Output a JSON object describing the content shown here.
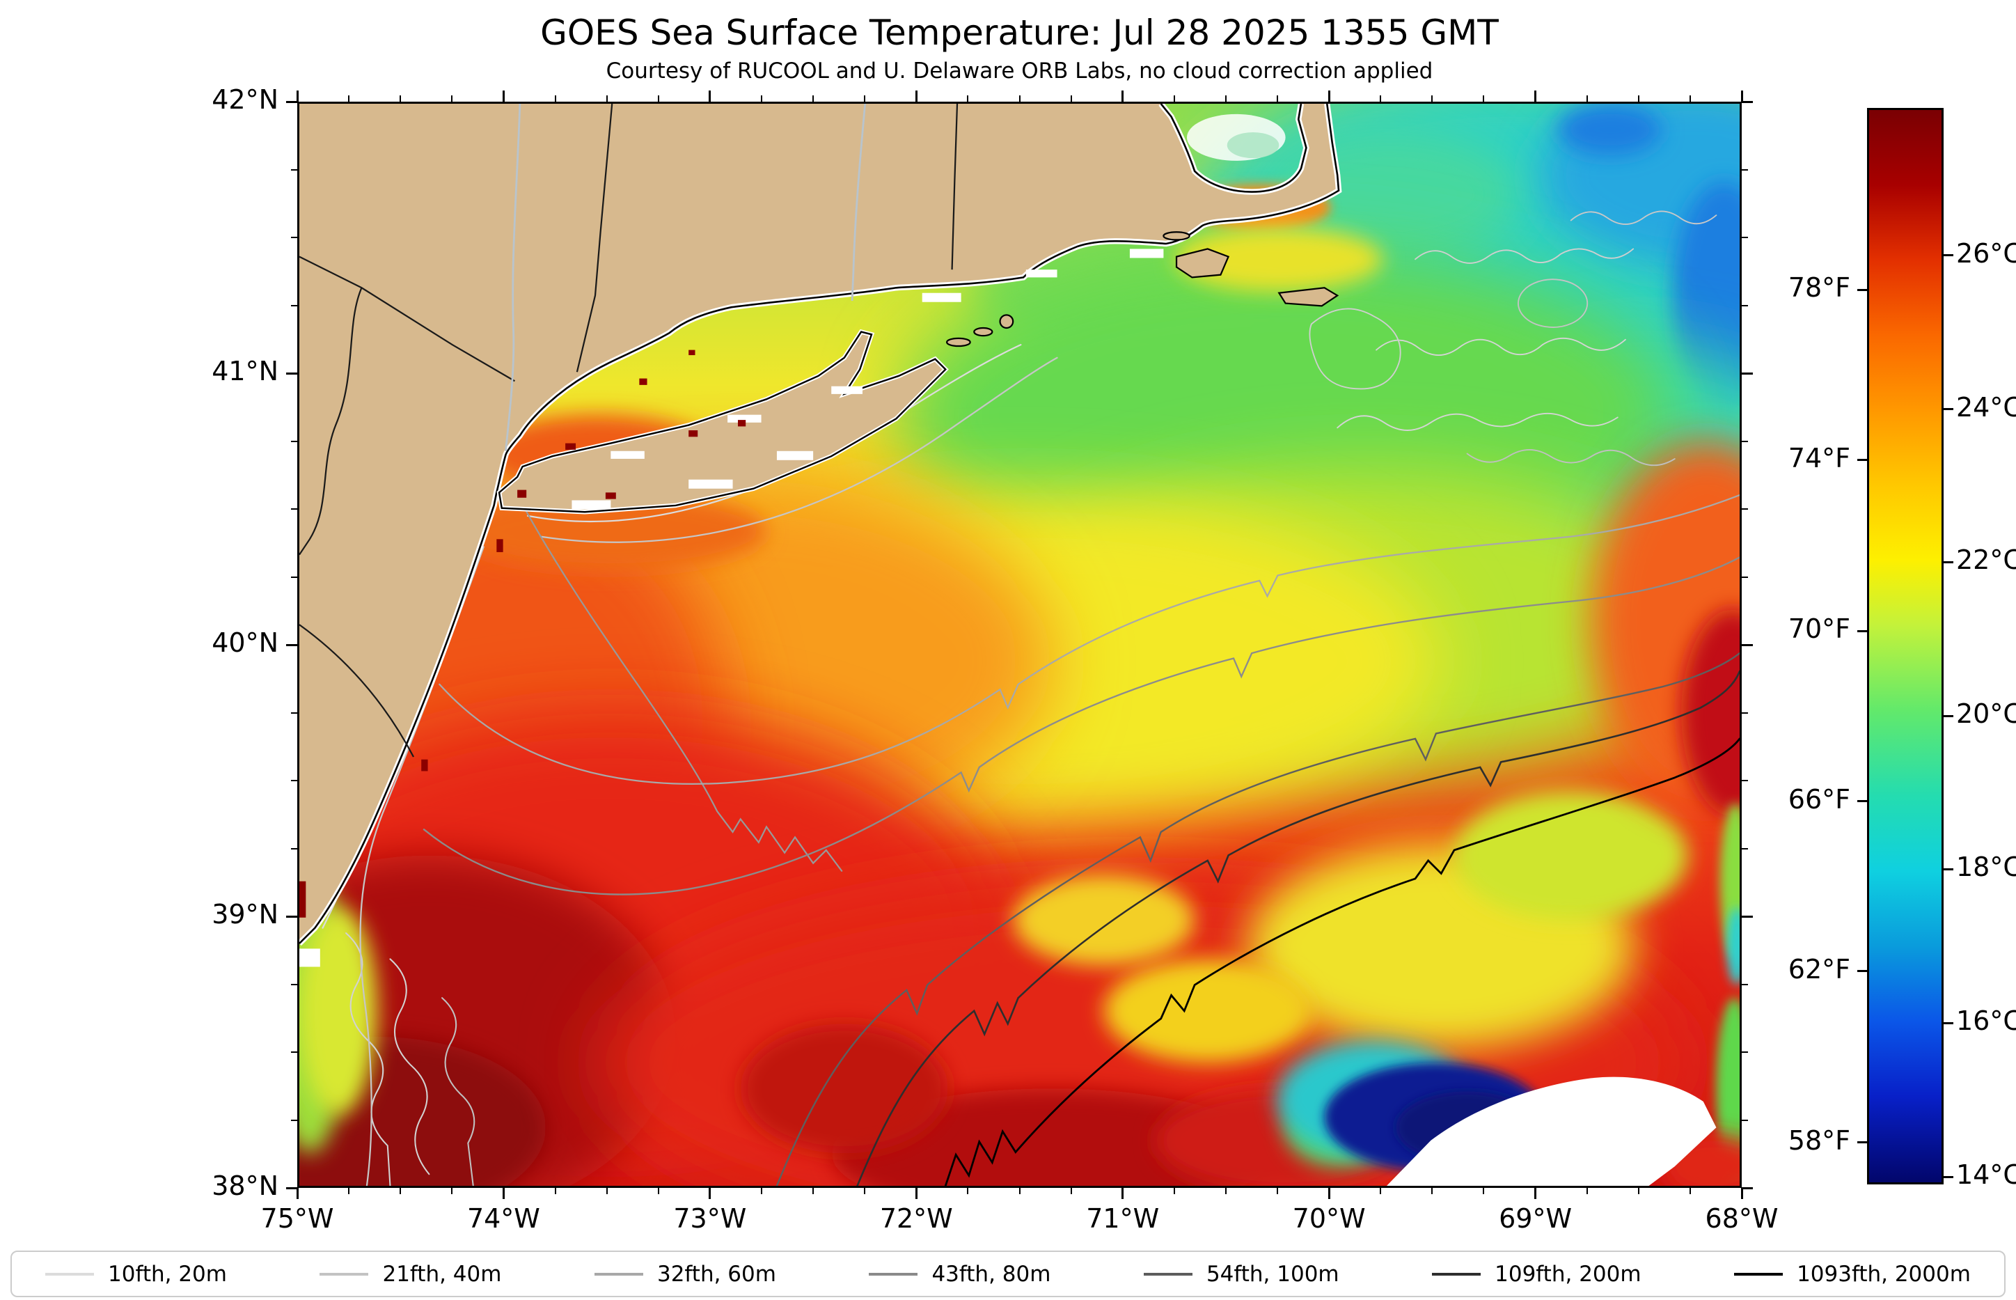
{
  "header": {
    "title": "GOES Sea Surface Temperature: Jul 28 2025 1355 GMT",
    "subtitle": "Courtesy of RUCOOL and U. Delaware ORB Labs, no cloud correction applied"
  },
  "map_axes": {
    "x_tick_labels": [
      "75°W",
      "74°W",
      "73°W",
      "72°W",
      "71°W",
      "70°W",
      "69°W",
      "68°W"
    ],
    "y_tick_labels": [
      "42°N",
      "41°N",
      "40°N",
      "39°N",
      "38°N"
    ],
    "minor_per_major": 4
  },
  "colorbar": {
    "f_labels": [
      [
        "78°F",
        0.169
      ],
      [
        "74°F",
        0.327
      ],
      [
        "70°F",
        0.486
      ],
      [
        "66°F",
        0.644
      ],
      [
        "62°F",
        0.802
      ],
      [
        "58°F",
        0.961
      ]
    ],
    "c_labels": [
      [
        "26°C",
        0.137
      ],
      [
        "24°C",
        0.28
      ],
      [
        "22°C",
        0.422
      ],
      [
        "20°C",
        0.565
      ],
      [
        "18°C",
        0.707
      ],
      [
        "16°C",
        0.85
      ],
      [
        "14°C",
        0.993
      ]
    ],
    "gradient": [
      [
        0,
        "#7a0003"
      ],
      [
        0.07,
        "#a80000"
      ],
      [
        0.14,
        "#e33000"
      ],
      [
        0.21,
        "#fa6800"
      ],
      [
        0.28,
        "#ff9800"
      ],
      [
        0.35,
        "#ffc800"
      ],
      [
        0.42,
        "#fdf000"
      ],
      [
        0.48,
        "#c4f23a"
      ],
      [
        0.56,
        "#62e96b"
      ],
      [
        0.64,
        "#24dcb0"
      ],
      [
        0.71,
        "#0fd0e0"
      ],
      [
        0.78,
        "#0a9bdc"
      ],
      [
        0.85,
        "#0b56e8"
      ],
      [
        0.92,
        "#0820c8"
      ],
      [
        1,
        "#02066b"
      ]
    ]
  },
  "legend": {
    "items": [
      {
        "label": "10fth, 20m",
        "color": "#dcdcdc"
      },
      {
        "label": "21fth, 40m",
        "color": "#c3c3c3"
      },
      {
        "label": "32fth, 60m",
        "color": "#a8a8a8"
      },
      {
        "label": "43fth, 80m",
        "color": "#8a8a8a"
      },
      {
        "label": "54fth, 100m",
        "color": "#5c5c5c"
      },
      {
        "label": "109fth, 200m",
        "color": "#2e2e2e"
      },
      {
        "label": "1093fth, 2000m",
        "color": "#000000"
      }
    ]
  },
  "colors": {
    "land": "#d7b98e",
    "coastline": "#000000",
    "figure_background": "#ffffff"
  },
  "chart_data": {
    "type": "heatmap",
    "title": "GOES Sea Surface Temperature: Jul 28 2025 1355 GMT",
    "subtitle": "Courtesy of RUCOOL and U. Delaware ORB Labs, no cloud correction applied",
    "x_axis": {
      "ticks": [
        "75°W",
        "74°W",
        "73°W",
        "72°W",
        "71°W",
        "70°W",
        "69°W",
        "68°W"
      ],
      "range_deg_west": [
        75,
        68
      ]
    },
    "y_axis": {
      "ticks": [
        "42°N",
        "41°N",
        "40°N",
        "39°N",
        "38°N"
      ],
      "range_deg_north": [
        38,
        42
      ]
    },
    "colorbar": {
      "fahrenheit_ticks": [
        "78°F",
        "74°F",
        "70°F",
        "66°F",
        "62°F",
        "58°F"
      ],
      "celsius_ticks": [
        "26°C",
        "24°C",
        "22°C",
        "20°C",
        "18°C",
        "16°C",
        "14°C"
      ],
      "colormap": "jet-like: dark blue, blue, cyan, green, yellow, orange, red, dark red (warm at top)"
    },
    "bathymetry_contours_legend": [
      "10fth, 20m",
      "21fth, 40m",
      "32fth, 60m",
      "43fth, 80m",
      "54fth, 100m",
      "109fth, 200m",
      "1093fth, 2000m"
    ],
    "observed_field": [
      "warmest water ~26-27°C (dark red) in the southwest off the New Jersey/Delmarva coast and across the southern half",
      "yellow/green slope water ~21-23°C in a band across the central Mid-Atlantic Bight",
      "coolest water ~17-20°C (cyan/teal) northeast of Long Island toward Georges Bank, with blue patches in the far northeast corner",
      "white no-data/cloud patch with adjacent dark-blue artifact near the bottom right around 69-70°W, 38-38.4°N",
      "land (NJ, NY, Long Island, CT, RI, MA with Cape Cod and islands) masked in tan with gray bathymetry contours offshore"
    ]
  }
}
